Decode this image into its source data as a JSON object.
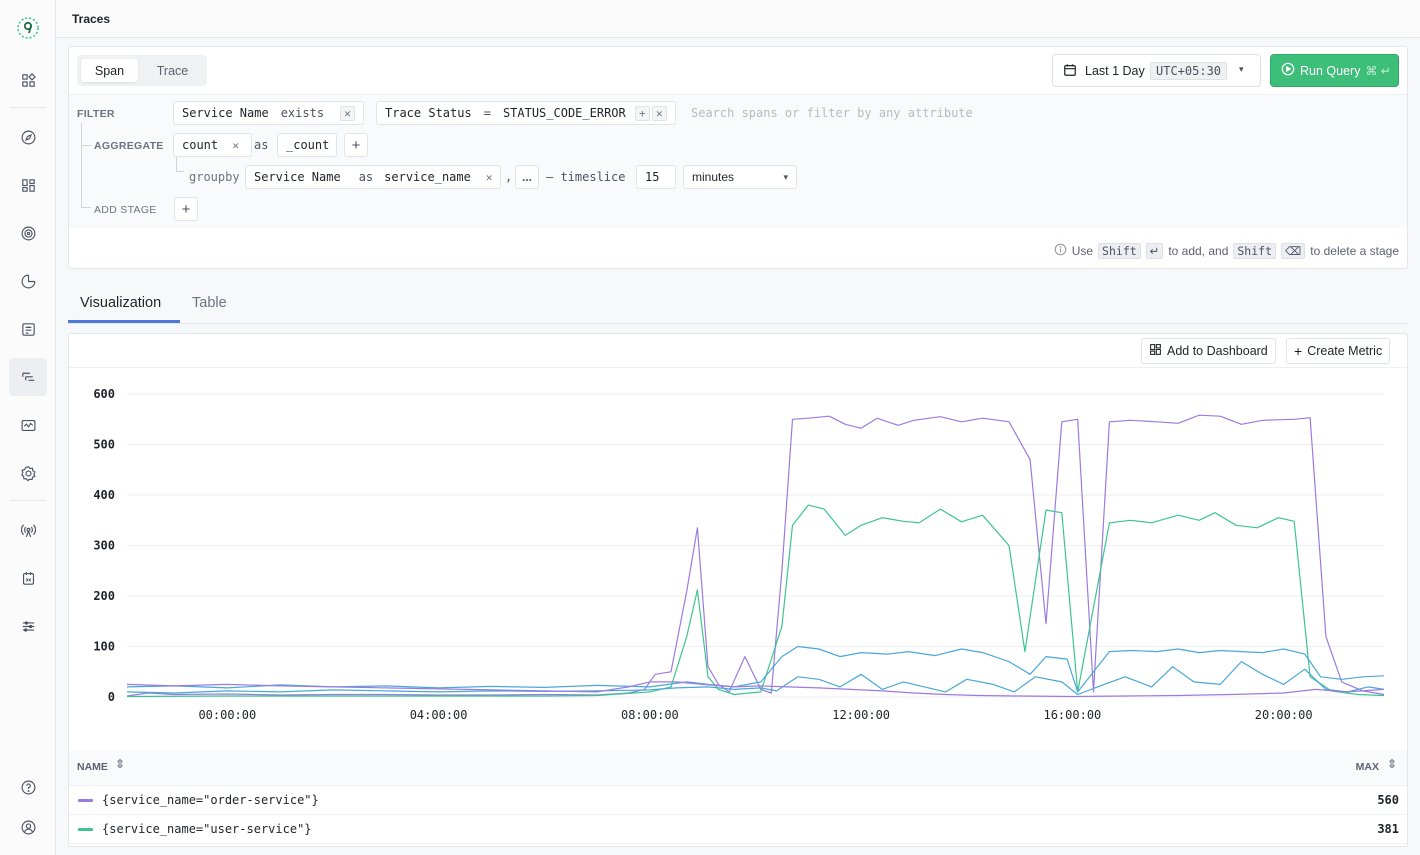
{
  "header": {
    "title": "Traces"
  },
  "sidebar": {
    "icons": [
      "logo-icon",
      "home-icon",
      "explore-icon",
      "dashboards-icon",
      "alerts-icon",
      "metrics-icon",
      "logs-icon",
      "traces-icon",
      "infra-icon",
      "settings-icon",
      "ingestion-icon",
      "integrations-icon",
      "preferences-icon",
      "help-icon",
      "user-icon"
    ]
  },
  "query": {
    "tabs": [
      "Span",
      "Trace"
    ],
    "active_tab": "Span",
    "time_range": "Last 1 Day",
    "timezone": "UTC+05:30",
    "run_label": "Run Query",
    "filter_label": "FILTER",
    "filters": [
      {
        "field": "Service Name",
        "op": "exists",
        "value": ""
      },
      {
        "field": "Trace Status",
        "op": "=",
        "value": "STATUS_CODE_ERROR"
      }
    ],
    "search_placeholder": "Search spans or filter by any attribute",
    "aggregate_label": "AGGREGATE",
    "agg_fn": "count",
    "as_text": "as",
    "agg_alias": "_count",
    "groupby_text": "groupby",
    "groupby_field": "Service Name",
    "groupby_alias": "service_name",
    "comma": ",",
    "more": "...",
    "timeslice_text": "— timeslice",
    "timeslice_value": "15",
    "timeslice_unit": "minutes",
    "add_stage_label": "ADD STAGE",
    "hint": {
      "use": "Use",
      "shift1": "Shift",
      "to_add": "to add, and",
      "shift2": "Shift",
      "to_delete": "to delete a stage"
    }
  },
  "result_tabs": [
    "Visualization",
    "Table"
  ],
  "active_result_tab": "Visualization",
  "toolbar": {
    "add_dashboard": "Add to Dashboard",
    "create_metric": "Create Metric"
  },
  "colors": {
    "order": "#9b7be0",
    "user": "#3cc58e",
    "blue": "#4aa8d8",
    "accent": "#4e79d6",
    "run": "#3dbe79"
  },
  "legend": {
    "name_header": "NAME",
    "max_header": "MAX",
    "rows": [
      {
        "name": "{service_name=\"order-service\"}",
        "max": "560",
        "color": "#9b7be0"
      },
      {
        "name": "{service_name=\"user-service\"}",
        "max": "381",
        "color": "#3cc58e"
      }
    ]
  },
  "chart_data": {
    "type": "line",
    "ylim": [
      0,
      600
    ],
    "yticks": [
      0,
      100,
      200,
      300,
      400,
      500,
      600
    ],
    "xticks": [
      "00:00:00",
      "04:00:00",
      "08:00:00",
      "12:00:00",
      "16:00:00",
      "20:00:00"
    ],
    "x_hours_range": [
      -1.9,
      21.9
    ],
    "series": [
      {
        "name": "{service_name=\"order-service\"}",
        "color": "#9b7be0",
        "points": [
          [
            -1.9,
            2
          ],
          [
            -1.5,
            8
          ],
          [
            -1,
            5
          ],
          [
            0,
            6
          ],
          [
            1,
            4
          ],
          [
            2,
            5
          ],
          [
            3,
            5
          ],
          [
            4,
            4
          ],
          [
            5,
            4
          ],
          [
            6,
            5
          ],
          [
            7,
            4
          ],
          [
            7.6,
            8
          ],
          [
            7.9,
            15
          ],
          [
            8.1,
            45
          ],
          [
            8.4,
            50
          ],
          [
            8.7,
            210
          ],
          [
            8.9,
            335
          ],
          [
            9.1,
            60
          ],
          [
            9.3,
            25
          ],
          [
            9.5,
            10
          ],
          [
            9.8,
            80
          ],
          [
            10.1,
            15
          ],
          [
            10.3,
            8
          ],
          [
            10.5,
            250
          ],
          [
            10.7,
            550
          ],
          [
            11,
            552
          ],
          [
            11.4,
            556
          ],
          [
            11.7,
            540
          ],
          [
            12,
            532
          ],
          [
            12.3,
            552
          ],
          [
            12.7,
            538
          ],
          [
            13,
            548
          ],
          [
            13.5,
            555
          ],
          [
            13.9,
            545
          ],
          [
            14.3,
            552
          ],
          [
            14.8,
            545
          ],
          [
            15.2,
            470
          ],
          [
            15.5,
            145
          ],
          [
            15.8,
            545
          ],
          [
            16.1,
            550
          ],
          [
            16.4,
            10
          ],
          [
            16.7,
            545
          ],
          [
            17.1,
            548
          ],
          [
            17.6,
            545
          ],
          [
            18,
            542
          ],
          [
            18.4,
            558
          ],
          [
            18.8,
            556
          ],
          [
            19.2,
            540
          ],
          [
            19.6,
            548
          ],
          [
            20.2,
            550
          ],
          [
            20.5,
            553
          ],
          [
            20.8,
            120
          ],
          [
            21.1,
            30
          ],
          [
            21.5,
            12
          ],
          [
            21.9,
            5
          ]
        ]
      },
      {
        "name": "{service_name=\"user-service\"}",
        "color": "#3cc58e",
        "points": [
          [
            -1.9,
            1
          ],
          [
            0,
            2
          ],
          [
            2,
            2
          ],
          [
            4,
            2
          ],
          [
            6,
            2
          ],
          [
            7,
            3
          ],
          [
            8,
            10
          ],
          [
            8.4,
            20
          ],
          [
            8.7,
            120
          ],
          [
            8.9,
            212
          ],
          [
            9.1,
            40
          ],
          [
            9.3,
            15
          ],
          [
            9.6,
            5
          ],
          [
            10.1,
            10
          ],
          [
            10.5,
            140
          ],
          [
            10.7,
            340
          ],
          [
            11,
            380
          ],
          [
            11.3,
            372
          ],
          [
            11.7,
            320
          ],
          [
            12,
            340
          ],
          [
            12.4,
            355
          ],
          [
            12.8,
            348
          ],
          [
            13.1,
            345
          ],
          [
            13.5,
            372
          ],
          [
            13.9,
            347
          ],
          [
            14.3,
            360
          ],
          [
            14.8,
            300
          ],
          [
            15.1,
            90
          ],
          [
            15.5,
            370
          ],
          [
            15.8,
            365
          ],
          [
            16.1,
            10
          ],
          [
            16.7,
            345
          ],
          [
            17.1,
            350
          ],
          [
            17.5,
            345
          ],
          [
            18,
            360
          ],
          [
            18.4,
            350
          ],
          [
            18.7,
            365
          ],
          [
            19.1,
            340
          ],
          [
            19.5,
            335
          ],
          [
            19.9,
            355
          ],
          [
            20.2,
            348
          ],
          [
            20.5,
            40
          ],
          [
            20.9,
            12
          ],
          [
            21.4,
            5
          ],
          [
            21.9,
            3
          ]
        ]
      },
      {
        "name": "blue-1",
        "color": "#4aa8d8",
        "points": [
          [
            -1.9,
            20
          ],
          [
            -1,
            22
          ],
          [
            0,
            18
          ],
          [
            1,
            24
          ],
          [
            2,
            20
          ],
          [
            3,
            22
          ],
          [
            4,
            18
          ],
          [
            5,
            21
          ],
          [
            6,
            19
          ],
          [
            7,
            23
          ],
          [
            8,
            20
          ],
          [
            8.7,
            30
          ],
          [
            9.1,
            25
          ],
          [
            9.6,
            20
          ],
          [
            10.1,
            30
          ],
          [
            10.5,
            80
          ],
          [
            10.8,
            100
          ],
          [
            11.2,
            95
          ],
          [
            11.6,
            80
          ],
          [
            12,
            88
          ],
          [
            12.5,
            85
          ],
          [
            12.9,
            90
          ],
          [
            13.4,
            82
          ],
          [
            13.9,
            95
          ],
          [
            14.3,
            88
          ],
          [
            14.8,
            70
          ],
          [
            15.2,
            45
          ],
          [
            15.5,
            80
          ],
          [
            15.9,
            75
          ],
          [
            16.1,
            10
          ],
          [
            16.7,
            90
          ],
          [
            17.1,
            92
          ],
          [
            17.6,
            90
          ],
          [
            18,
            95
          ],
          [
            18.4,
            88
          ],
          [
            18.8,
            92
          ],
          [
            19.2,
            90
          ],
          [
            19.6,
            88
          ],
          [
            20,
            95
          ],
          [
            20.4,
            85
          ],
          [
            20.7,
            40
          ],
          [
            21.1,
            35
          ],
          [
            21.5,
            40
          ],
          [
            21.9,
            42
          ]
        ]
      },
      {
        "name": "blue-2",
        "color": "#4aa8d8",
        "points": [
          [
            -1.9,
            10
          ],
          [
            -1,
            8
          ],
          [
            0,
            12
          ],
          [
            1,
            10
          ],
          [
            2,
            14
          ],
          [
            3,
            12
          ],
          [
            4,
            10
          ],
          [
            5,
            12
          ],
          [
            6,
            11
          ],
          [
            7,
            12
          ],
          [
            8,
            14
          ],
          [
            8.5,
            18
          ],
          [
            9.1,
            20
          ],
          [
            9.6,
            15
          ],
          [
            10.1,
            18
          ],
          [
            10.4,
            12
          ],
          [
            10.8,
            40
          ],
          [
            11.2,
            35
          ],
          [
            11.6,
            20
          ],
          [
            12,
            45
          ],
          [
            12.4,
            15
          ],
          [
            12.8,
            30
          ],
          [
            13.2,
            20
          ],
          [
            13.6,
            10
          ],
          [
            14,
            35
          ],
          [
            14.5,
            25
          ],
          [
            14.9,
            10
          ],
          [
            15.3,
            40
          ],
          [
            15.8,
            30
          ],
          [
            16.1,
            5
          ],
          [
            16.6,
            25
          ],
          [
            17,
            40
          ],
          [
            17.5,
            20
          ],
          [
            17.9,
            60
          ],
          [
            18.3,
            30
          ],
          [
            18.8,
            25
          ],
          [
            19.2,
            70
          ],
          [
            19.6,
            45
          ],
          [
            20,
            25
          ],
          [
            20.4,
            55
          ],
          [
            20.8,
            15
          ],
          [
            21.2,
            10
          ],
          [
            21.6,
            20
          ],
          [
            21.9,
            15
          ]
        ]
      },
      {
        "name": "purple-2",
        "color": "#9b7be0",
        "points": [
          [
            -1.9,
            25
          ],
          [
            -1,
            22
          ],
          [
            0,
            25
          ],
          [
            1,
            22
          ],
          [
            2,
            20
          ],
          [
            3,
            18
          ],
          [
            4,
            16
          ],
          [
            5,
            14
          ],
          [
            6,
            12
          ],
          [
            7,
            10
          ],
          [
            7.6,
            20
          ],
          [
            8,
            30
          ],
          [
            8.5,
            30
          ],
          [
            9,
            25
          ],
          [
            9.6,
            20
          ],
          [
            10.1,
            22
          ],
          [
            10.6,
            20
          ],
          [
            11.2,
            18
          ],
          [
            11.8,
            15
          ],
          [
            12.4,
            12
          ],
          [
            13,
            8
          ],
          [
            13.6,
            5
          ],
          [
            14.2,
            3
          ],
          [
            15,
            2
          ],
          [
            16,
            1
          ],
          [
            17,
            2
          ],
          [
            18,
            3
          ],
          [
            19,
            5
          ],
          [
            20,
            8
          ],
          [
            20.6,
            15
          ],
          [
            21.2,
            10
          ],
          [
            21.9,
            15
          ]
        ]
      }
    ]
  }
}
